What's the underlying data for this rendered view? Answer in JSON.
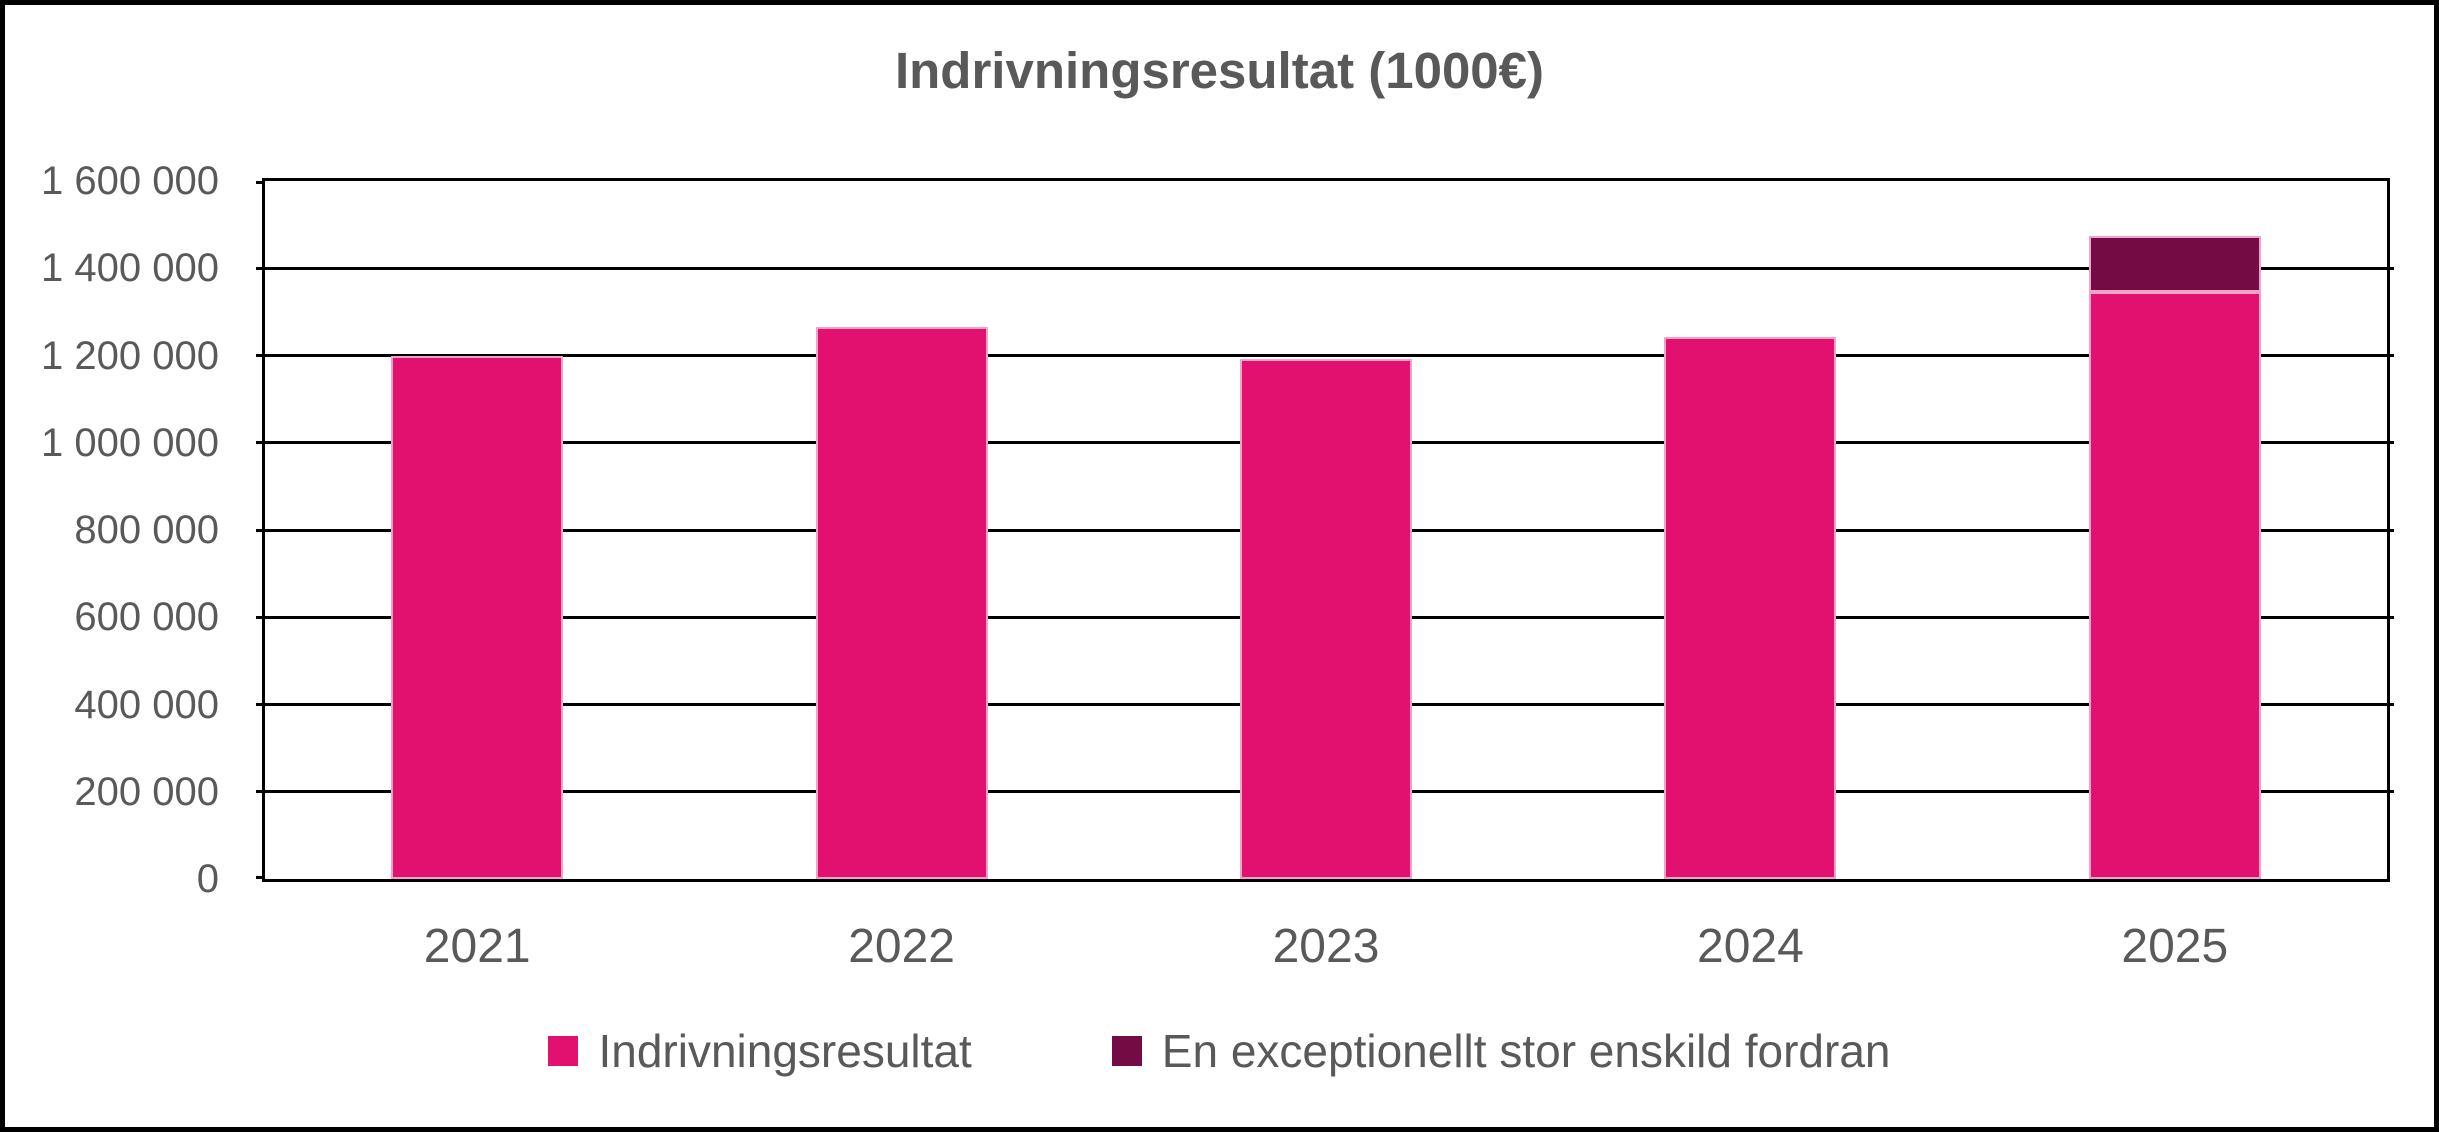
{
  "colors": {
    "series_pink": "#E2106E",
    "series_maroon": "#750B44",
    "bar_border_light_pink": "#F2A3C9",
    "grid_and_frame": "#000000",
    "text_gray": "#595959",
    "background": "#FFFFFF"
  },
  "chart_data": {
    "type": "bar",
    "stacked": true,
    "title": "Indrivningsresultat (1000€)",
    "categories": [
      "2021",
      "2022",
      "2023",
      "2024",
      "2025"
    ],
    "series": [
      {
        "name": "Indrivningsresultat",
        "color": "#E2106E",
        "values": [
          1200000,
          1265000,
          1193000,
          1243000,
          1345000
        ]
      },
      {
        "name": "En exceptionellt stor enskild fordran",
        "color": "#750B44",
        "values": [
          0,
          0,
          0,
          0,
          130000
        ]
      }
    ],
    "xlabel": "",
    "ylabel": "",
    "ylim": [
      0,
      1600000
    ],
    "ytick_step": 200000,
    "ytick_labels": [
      "0",
      "200 000",
      "400 000",
      "600 000",
      "800 000",
      "1 000 000",
      "1 200 000",
      "1 400 000",
      "1 600 000"
    ],
    "grid": true,
    "gridline_color": "#000000",
    "legend_position": "bottom"
  }
}
